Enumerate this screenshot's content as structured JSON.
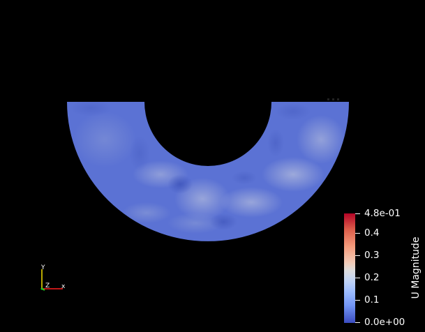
{
  "render": {
    "background": "#000000",
    "shape": "half-annulus",
    "base_color": "#5b73d6"
  },
  "legend": {
    "title": "U Magnitude",
    "ticks": [
      {
        "label": "4.8e-01",
        "value": 0.48
      },
      {
        "label": "0.4",
        "value": 0.4
      },
      {
        "label": "0.3",
        "value": 0.3
      },
      {
        "label": "0.2",
        "value": 0.2
      },
      {
        "label": "0.1",
        "value": 0.1
      },
      {
        "label": "0.0e+00",
        "value": 0.0
      }
    ],
    "range": [
      0.0,
      0.48
    ],
    "colormap": "Cool to Warm",
    "colors": {
      "low": "#3b4cc0",
      "mid": "#dddcdc",
      "high": "#b40426"
    }
  },
  "axes": {
    "x_label": "x",
    "y_label": "Y",
    "z_label": "Z",
    "x_color": "#ff2020",
    "y_color": "#f5e000",
    "z_color": "#20d020"
  }
}
